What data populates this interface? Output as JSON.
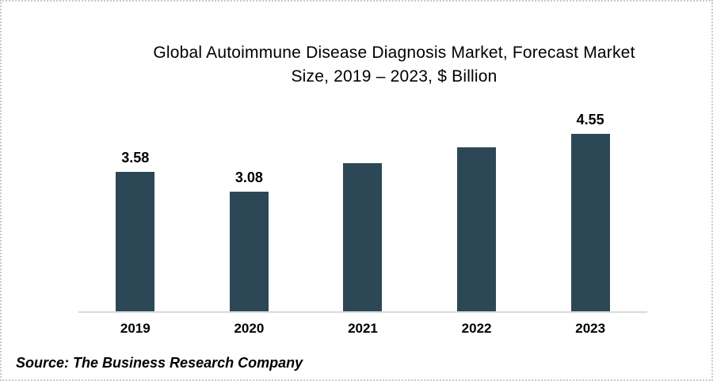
{
  "title": {
    "line1": "Global Autoimmune Disease Diagnosis Market, Forecast Market",
    "line2": "Size, 2019 – 2023, $ Billion"
  },
  "source": "Source: The Business Research Company",
  "colors": {
    "bar": "#2C4857",
    "axis": "#D9D9D9",
    "border": "#C9C9C9",
    "text": "#000000",
    "background": "#FFFFFF"
  },
  "chart_data": {
    "type": "bar",
    "title": "Global Autoimmune Disease Diagnosis Market, Forecast Market Size, 2019 – 2023, $ Billion",
    "categories": [
      "2019",
      "2020",
      "2021",
      "2022",
      "2023"
    ],
    "values": [
      3.58,
      3.08,
      3.8,
      4.2,
      4.55
    ],
    "data_labels": [
      "3.58",
      "3.08",
      "",
      "",
      "4.55"
    ],
    "xlabel": "",
    "ylabel": "",
    "ylim": [
      0,
      5
    ],
    "y_axis_visible": false,
    "grid": false,
    "legend": false
  }
}
